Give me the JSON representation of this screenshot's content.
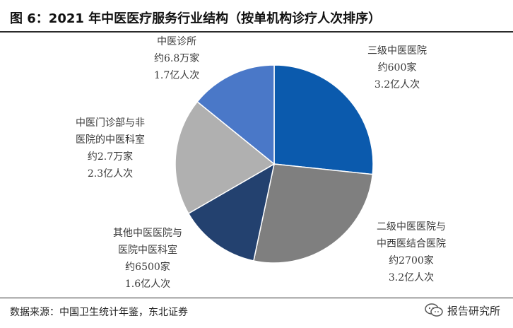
{
  "title": "图 6：2021 年中医医疗服务行业结构（按单机构诊疗人次排序）",
  "source": "数据来源：中国卫生统计年鉴，东北证券",
  "watermark": "报告研究所",
  "chart_data": {
    "type": "pie",
    "slices": [
      {
        "label_lines": [
          "三级中医医院",
          "约600家",
          "3.2亿人次"
        ],
        "value": 3.2,
        "color": "#0b5aad"
      },
      {
        "label_lines": [
          "二级中医医院与",
          "中西医结合医院",
          "约2700家",
          "3.2亿人次"
        ],
        "value": 3.2,
        "color": "#7f7f7f"
      },
      {
        "label_lines": [
          "其他中医医院与",
          "医院中医科室",
          "约6500家",
          "1.6亿人次"
        ],
        "value": 1.6,
        "color": "#23416f"
      },
      {
        "label_lines": [
          "中医门诊部与非",
          "医院的中医科室",
          "约2.7万家",
          "2.3亿人次"
        ],
        "value": 2.3,
        "color": "#b0b0b0"
      },
      {
        "label_lines": [
          "中医诊所",
          "约6.8万家",
          "1.7亿人次"
        ],
        "value": 1.7,
        "color": "#4a78c8"
      }
    ]
  }
}
